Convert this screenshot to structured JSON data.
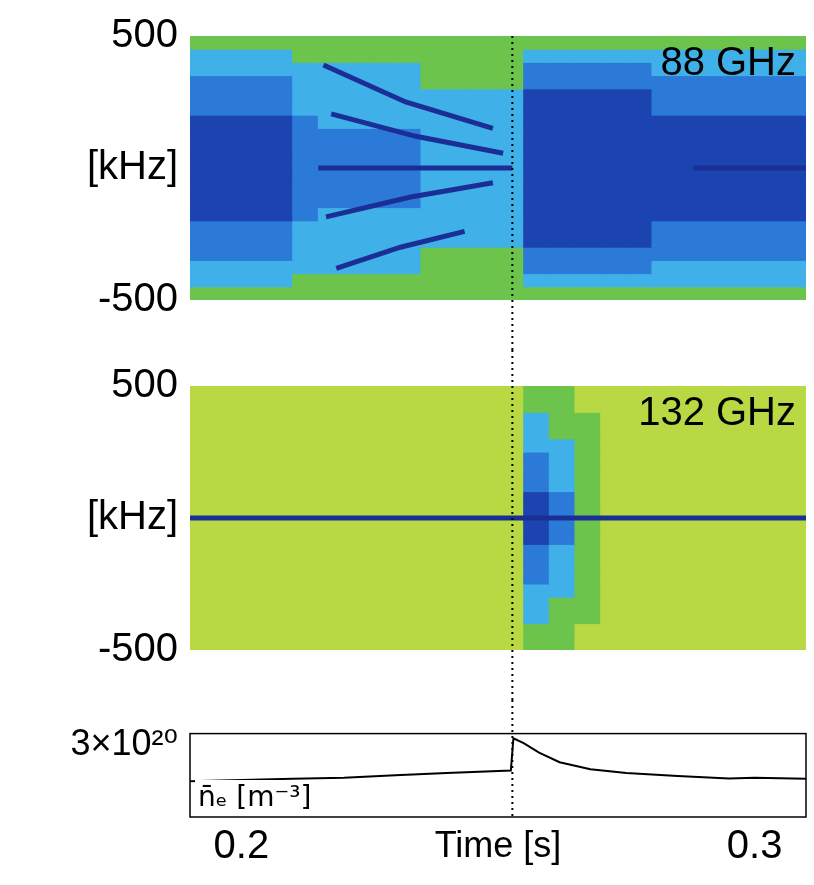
{
  "chart_data": [
    {
      "type": "heatmap",
      "title": "88 GHz",
      "ylabel": "[kHz]",
      "xlim": [
        0.19,
        0.31
      ],
      "ylim": [
        -500,
        500
      ],
      "yticks": [
        -500,
        500
      ],
      "tick_labels": "y",
      "grid": false,
      "x": [
        0.19,
        0.195,
        0.2,
        0.205,
        0.21,
        0.215,
        0.22,
        0.225,
        0.23,
        0.235,
        0.24,
        0.245,
        0.25,
        0.255,
        0.26,
        0.265,
        0.27,
        0.275,
        0.28,
        0.285,
        0.29,
        0.295,
        0.3,
        0.305,
        0.31
      ],
      "y": [
        -500,
        -450,
        -400,
        -350,
        -300,
        -250,
        -200,
        -150,
        -100,
        -50,
        0,
        50,
        100,
        150,
        200,
        250,
        300,
        350,
        400,
        450,
        500
      ],
      "zlim": [
        0,
        4
      ],
      "colors": [
        "#b8d844",
        "#6cc44c",
        "#40b0e8",
        "#2c7ad8",
        "#1c44b0"
      ],
      "cells": [
        [
          1,
          1,
          1,
          1,
          1,
          1,
          1,
          1,
          1,
          1,
          1,
          1,
          1,
          1,
          1,
          1,
          1,
          1,
          1,
          1,
          1,
          1,
          1,
          1
        ],
        [
          2,
          2,
          2,
          2,
          1,
          1,
          1,
          1,
          1,
          1,
          1,
          1,
          1,
          2,
          2,
          2,
          2,
          2,
          2,
          2,
          2,
          2,
          2,
          2
        ],
        [
          2,
          2,
          2,
          2,
          2,
          2,
          2,
          2,
          2,
          1,
          1,
          1,
          1,
          3,
          3,
          3,
          3,
          3,
          2,
          2,
          2,
          2,
          2,
          2
        ],
        [
          3,
          3,
          3,
          3,
          2,
          2,
          2,
          2,
          2,
          1,
          1,
          1,
          1,
          3,
          3,
          3,
          3,
          3,
          3,
          3,
          3,
          3,
          3,
          3
        ],
        [
          3,
          3,
          3,
          3,
          2,
          2,
          2,
          2,
          2,
          2,
          2,
          2,
          2,
          4,
          4,
          4,
          4,
          4,
          3,
          3,
          3,
          3,
          3,
          3
        ],
        [
          3,
          3,
          3,
          3,
          2,
          2,
          2,
          2,
          2,
          2,
          2,
          2,
          2,
          4,
          4,
          4,
          4,
          4,
          3,
          3,
          3,
          3,
          3,
          3
        ],
        [
          4,
          4,
          4,
          4,
          3,
          2,
          2,
          2,
          2,
          2,
          2,
          2,
          2,
          4,
          4,
          4,
          4,
          4,
          4,
          4,
          4,
          4,
          4,
          4
        ],
        [
          4,
          4,
          4,
          4,
          3,
          3,
          3,
          3,
          3,
          2,
          2,
          2,
          2,
          4,
          4,
          4,
          4,
          4,
          4,
          4,
          4,
          4,
          4,
          4
        ],
        [
          4,
          4,
          4,
          4,
          3,
          3,
          3,
          3,
          3,
          2,
          2,
          2,
          2,
          4,
          4,
          4,
          4,
          4,
          4,
          4,
          4,
          4,
          4,
          4
        ],
        [
          4,
          4,
          4,
          4,
          3,
          3,
          3,
          3,
          3,
          2,
          2,
          2,
          2,
          4,
          4,
          4,
          4,
          4,
          4,
          4,
          4,
          4,
          4,
          4
        ],
        [
          4,
          4,
          4,
          4,
          3,
          3,
          3,
          3,
          3,
          2,
          2,
          2,
          2,
          4,
          4,
          4,
          4,
          4,
          4,
          4,
          4,
          4,
          4,
          4
        ],
        [
          4,
          4,
          4,
          4,
          3,
          3,
          3,
          3,
          3,
          2,
          2,
          2,
          2,
          4,
          4,
          4,
          4,
          4,
          4,
          4,
          4,
          4,
          4,
          4
        ],
        [
          4,
          4,
          4,
          4,
          3,
          3,
          3,
          3,
          3,
          2,
          2,
          2,
          2,
          4,
          4,
          4,
          4,
          4,
          4,
          4,
          4,
          4,
          4,
          4
        ],
        [
          4,
          4,
          4,
          4,
          3,
          2,
          2,
          2,
          2,
          2,
          2,
          2,
          2,
          4,
          4,
          4,
          4,
          4,
          4,
          4,
          4,
          4,
          4,
          4
        ],
        [
          3,
          3,
          3,
          3,
          2,
          2,
          2,
          2,
          2,
          2,
          2,
          2,
          2,
          4,
          4,
          4,
          4,
          4,
          3,
          3,
          3,
          3,
          3,
          3
        ],
        [
          3,
          3,
          3,
          3,
          2,
          2,
          2,
          2,
          2,
          2,
          2,
          2,
          2,
          4,
          4,
          4,
          4,
          4,
          3,
          3,
          3,
          3,
          3,
          3
        ],
        [
          3,
          3,
          3,
          3,
          2,
          2,
          2,
          2,
          2,
          1,
          1,
          1,
          1,
          3,
          3,
          3,
          3,
          3,
          3,
          3,
          3,
          3,
          3,
          3
        ],
        [
          2,
          2,
          2,
          2,
          2,
          2,
          2,
          2,
          2,
          1,
          1,
          1,
          1,
          3,
          3,
          3,
          3,
          3,
          2,
          2,
          2,
          2,
          2,
          2
        ],
        [
          2,
          2,
          2,
          2,
          1,
          1,
          1,
          1,
          1,
          1,
          1,
          1,
          1,
          2,
          2,
          2,
          2,
          2,
          2,
          2,
          2,
          2,
          2,
          2
        ],
        [
          1,
          1,
          1,
          1,
          1,
          1,
          1,
          1,
          1,
          1,
          1,
          1,
          1,
          1,
          1,
          1,
          1,
          1,
          1,
          1,
          1,
          1,
          1,
          1
        ]
      ],
      "series": [
        {
          "x": [
            0.216,
            0.232,
            0.249
          ],
          "values": [
            390,
            250,
            150
          ],
          "color": "#1a2e96"
        },
        {
          "x": [
            0.2175,
            0.234,
            0.251
          ],
          "values": [
            205,
            120,
            56
          ],
          "color": "#1a2e96"
        },
        {
          "x": [
            0.2165,
            0.233,
            0.249
          ],
          "values": [
            -185,
            -110,
            -56
          ],
          "color": "#1a2e96"
        },
        {
          "x": [
            0.2185,
            0.231,
            0.2435
          ],
          "values": [
            -380,
            -300,
            -240
          ],
          "color": "#1a2e96"
        },
        {
          "x": [
            0.215,
            0.2528
          ],
          "values": [
            0,
            0
          ],
          "color": "#1a2e96"
        },
        {
          "x": [
            0.288,
            0.31
          ],
          "values": [
            0,
            0
          ],
          "color": "#1a2e96"
        }
      ],
      "vline": {
        "x": 0.2528,
        "line_style": "dotted"
      }
    },
    {
      "type": "heatmap",
      "title": "132 GHz",
      "ylabel": "[kHz]",
      "xlim": [
        0.19,
        0.31
      ],
      "ylim": [
        -500,
        500
      ],
      "yticks": [
        -500,
        500
      ],
      "tick_labels": "y",
      "grid": false,
      "x": [
        0.19,
        0.195,
        0.2,
        0.205,
        0.21,
        0.215,
        0.22,
        0.225,
        0.23,
        0.235,
        0.24,
        0.245,
        0.25,
        0.255,
        0.26,
        0.265,
        0.27,
        0.275,
        0.28,
        0.285,
        0.29,
        0.295,
        0.3,
        0.305,
        0.31
      ],
      "y": [
        -500,
        -450,
        -400,
        -350,
        -300,
        -250,
        -200,
        -150,
        -100,
        -50,
        0,
        50,
        100,
        150,
        200,
        250,
        300,
        350,
        400,
        450,
        500
      ],
      "zlim": [
        0,
        4
      ],
      "colors": [
        "#b8d844",
        "#6cc44c",
        "#40b0e8",
        "#2c7ad8",
        "#1c44b0"
      ],
      "cells": [
        [
          0,
          0,
          0,
          0,
          0,
          0,
          0,
          0,
          0,
          0,
          0,
          0,
          0,
          1,
          1,
          0,
          0,
          0,
          0,
          0,
          0,
          0,
          0,
          0
        ],
        [
          0,
          0,
          0,
          0,
          0,
          0,
          0,
          0,
          0,
          0,
          0,
          0,
          0,
          1,
          1,
          0,
          0,
          0,
          0,
          0,
          0,
          0,
          0,
          0
        ],
        [
          0,
          0,
          0,
          0,
          0,
          0,
          0,
          0,
          0,
          0,
          0,
          0,
          0,
          2,
          1,
          1,
          0,
          0,
          0,
          0,
          0,
          0,
          0,
          0
        ],
        [
          0,
          0,
          0,
          0,
          0,
          0,
          0,
          0,
          0,
          0,
          0,
          0,
          0,
          2,
          1,
          1,
          0,
          0,
          0,
          0,
          0,
          0,
          0,
          0
        ],
        [
          0,
          0,
          0,
          0,
          0,
          0,
          0,
          0,
          0,
          0,
          0,
          0,
          0,
          2,
          2,
          1,
          0,
          0,
          0,
          0,
          0,
          0,
          0,
          0
        ],
        [
          0,
          0,
          0,
          0,
          0,
          0,
          0,
          0,
          0,
          0,
          0,
          0,
          0,
          3,
          2,
          1,
          0,
          0,
          0,
          0,
          0,
          0,
          0,
          0
        ],
        [
          0,
          0,
          0,
          0,
          0,
          0,
          0,
          0,
          0,
          0,
          0,
          0,
          0,
          3,
          2,
          1,
          0,
          0,
          0,
          0,
          0,
          0,
          0,
          0
        ],
        [
          0,
          0,
          0,
          0,
          0,
          0,
          0,
          0,
          0,
          0,
          0,
          0,
          0,
          3,
          2,
          1,
          0,
          0,
          0,
          0,
          0,
          0,
          0,
          0
        ],
        [
          0,
          0,
          0,
          0,
          0,
          0,
          0,
          0,
          0,
          0,
          0,
          0,
          0,
          4,
          3,
          1,
          0,
          0,
          0,
          0,
          0,
          0,
          0,
          0
        ],
        [
          0,
          0,
          0,
          0,
          0,
          0,
          0,
          0,
          0,
          0,
          0,
          0,
          0,
          4,
          3,
          1,
          0,
          0,
          0,
          0,
          0,
          0,
          0,
          0
        ],
        [
          0,
          0,
          0,
          0,
          0,
          0,
          0,
          0,
          0,
          0,
          0,
          0,
          0,
          4,
          3,
          1,
          0,
          0,
          0,
          0,
          0,
          0,
          0,
          0
        ],
        [
          0,
          0,
          0,
          0,
          0,
          0,
          0,
          0,
          0,
          0,
          0,
          0,
          0,
          4,
          3,
          1,
          0,
          0,
          0,
          0,
          0,
          0,
          0,
          0
        ],
        [
          0,
          0,
          0,
          0,
          0,
          0,
          0,
          0,
          0,
          0,
          0,
          0,
          0,
          3,
          2,
          1,
          0,
          0,
          0,
          0,
          0,
          0,
          0,
          0
        ],
        [
          0,
          0,
          0,
          0,
          0,
          0,
          0,
          0,
          0,
          0,
          0,
          0,
          0,
          3,
          2,
          1,
          0,
          0,
          0,
          0,
          0,
          0,
          0,
          0
        ],
        [
          0,
          0,
          0,
          0,
          0,
          0,
          0,
          0,
          0,
          0,
          0,
          0,
          0,
          3,
          2,
          1,
          0,
          0,
          0,
          0,
          0,
          0,
          0,
          0
        ],
        [
          0,
          0,
          0,
          0,
          0,
          0,
          0,
          0,
          0,
          0,
          0,
          0,
          0,
          2,
          2,
          1,
          0,
          0,
          0,
          0,
          0,
          0,
          0,
          0
        ],
        [
          0,
          0,
          0,
          0,
          0,
          0,
          0,
          0,
          0,
          0,
          0,
          0,
          0,
          2,
          1,
          1,
          0,
          0,
          0,
          0,
          0,
          0,
          0,
          0
        ],
        [
          0,
          0,
          0,
          0,
          0,
          0,
          0,
          0,
          0,
          0,
          0,
          0,
          0,
          2,
          1,
          1,
          0,
          0,
          0,
          0,
          0,
          0,
          0,
          0
        ],
        [
          0,
          0,
          0,
          0,
          0,
          0,
          0,
          0,
          0,
          0,
          0,
          0,
          0,
          1,
          1,
          0,
          0,
          0,
          0,
          0,
          0,
          0,
          0,
          0
        ],
        [
          0,
          0,
          0,
          0,
          0,
          0,
          0,
          0,
          0,
          0,
          0,
          0,
          0,
          1,
          1,
          0,
          0,
          0,
          0,
          0,
          0,
          0,
          0,
          0
        ]
      ],
      "series": [
        {
          "x": [
            0.19,
            0.31
          ],
          "values": [
            0,
            0
          ],
          "color": "#1a2e96"
        }
      ],
      "vline": {
        "x": 0.2528,
        "line_style": "dotted"
      }
    },
    {
      "type": "line",
      "xlabel": "Time [s]",
      "ylabel": "n̄ₑ [m⁻³]",
      "xlim": [
        0.19,
        0.31
      ],
      "xticks": [
        0.2,
        0.3
      ],
      "ylim": [
        0,
        3.5e+20
      ],
      "yticks": [
        {
          "value": 3e+20,
          "label": "3×10²⁰"
        }
      ],
      "grid": false,
      "color": "#000000",
      "x": [
        0.19,
        0.2,
        0.21,
        0.22,
        0.23,
        0.24,
        0.2525,
        0.253,
        0.255,
        0.258,
        0.262,
        0.268,
        0.275,
        0.285,
        0.295,
        0.3,
        0.31
      ],
      "values": [
        1.5e+20,
        1.55e+20,
        1.6e+20,
        1.65e+20,
        1.75e+20,
        1.85e+20,
        1.95e+20,
        3.3e+20,
        3.1e+20,
        2.7e+20,
        2.3e+20,
        2e+20,
        1.85e+20,
        1.72e+20,
        1.62e+20,
        1.65e+20,
        1.6e+20
      ],
      "vline": {
        "x": 0.2528,
        "line_style": "dotted"
      }
    }
  ]
}
